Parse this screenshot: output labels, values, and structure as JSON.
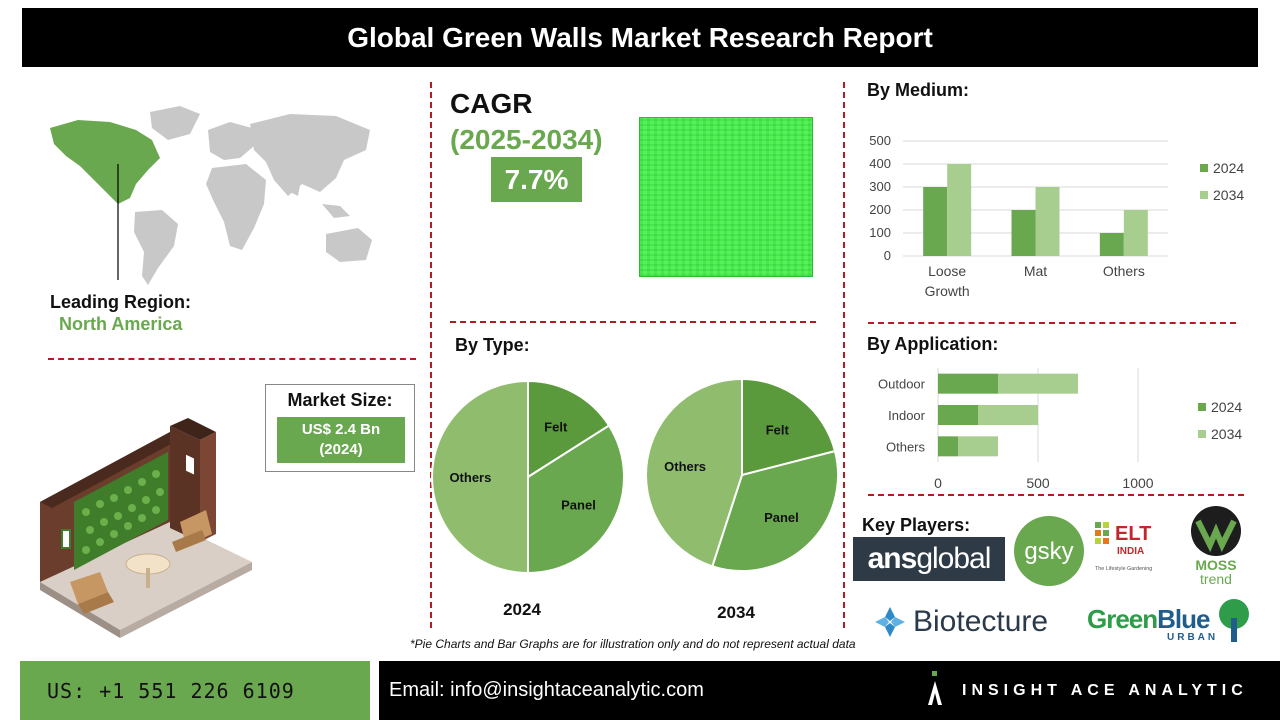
{
  "title": "Global Green Walls Market Research Report",
  "leading_region": {
    "label": "Leading Region:",
    "value": "North America"
  },
  "cagr": {
    "label": "CAGR",
    "period": "(2025-2034)",
    "value": "7.7%"
  },
  "market_size": {
    "label": "Market Size:",
    "value_line1": "US$ 2.4 Bn",
    "value_line2": "(2024)"
  },
  "sections": {
    "by_type": "By Type:",
    "by_medium": "By Medium:",
    "by_application": "By Application:",
    "key_players": "Key Players:"
  },
  "colors": {
    "dark_green": "#5b9a3c",
    "mid_green": "#6aa84f",
    "light_green": "#a8ce8f",
    "pie_others": "#8fbd6d",
    "accent_red": "#b01e23"
  },
  "chart_data": [
    {
      "type": "bar",
      "title": "By Medium:",
      "categories": [
        "Loose Growth",
        "Mat",
        "Others"
      ],
      "series": [
        {
          "name": "2024",
          "values": [
            300,
            200,
            100
          ]
        },
        {
          "name": "2034",
          "values": [
            400,
            300,
            200
          ]
        }
      ],
      "ylim": [
        0,
        500
      ],
      "yticks": [
        "0",
        "100",
        "200",
        "300",
        "400",
        "500"
      ],
      "grid": true,
      "legend": "right"
    },
    {
      "type": "bar",
      "orientation": "horizontal",
      "stacked": true,
      "title": "By Application:",
      "categories": [
        "Outdoor",
        "Indoor",
        "Others"
      ],
      "series": [
        {
          "name": "2024",
          "values": [
            300,
            200,
            100
          ]
        },
        {
          "name": "2034",
          "values": [
            400,
            300,
            200
          ]
        }
      ],
      "xlim": [
        0,
        1200
      ],
      "xticks": [
        "0",
        "500",
        "1000"
      ],
      "grid": true,
      "legend": "right"
    },
    {
      "type": "pie",
      "title": "2024",
      "labels": [
        "Felt",
        "Panel",
        "Others"
      ],
      "values": [
        16,
        34,
        50
      ]
    },
    {
      "type": "pie",
      "title": "2034",
      "labels": [
        "Felt",
        "Panel",
        "Others"
      ],
      "values": [
        21,
        34,
        45
      ]
    }
  ],
  "footnote": "*Pie Charts and Bar Graphs are for illustration only and do not represent actual data",
  "footer": {
    "phone": "US: +1 551 226 6109",
    "email": "Email: info@insightaceanalytic.com",
    "brand": "INSIGHT ACE ANALYTIC"
  },
  "key_players": {
    "ansglobal": {
      "a": "ans",
      "b": "global"
    },
    "gsky": "gsky",
    "elt_india": {
      "line1": "ELT",
      "line2": "INDIA",
      "tagline": "The Lifestyle Gardening"
    },
    "moss_trend": {
      "line1": "MOSS",
      "line2": "trend"
    },
    "biotecture": "Biotecture",
    "greenblue": {
      "a": "Green",
      "b": "Blue",
      "sub": "URBAN"
    }
  },
  "icons": [
    "world-map-icon",
    "green-wall-illustration-icon",
    "brand-logo-icon"
  ]
}
